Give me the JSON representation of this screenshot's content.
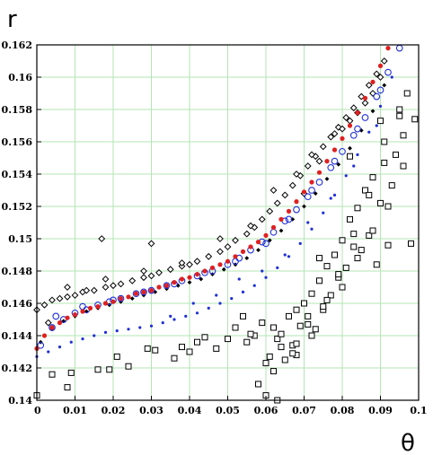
{
  "chart_data": {
    "type": "scatter",
    "title": "",
    "xlabel": "θ",
    "ylabel": "r",
    "xlim": [
      0,
      0.1
    ],
    "ylim": [
      0.14,
      0.162
    ],
    "x_ticks": [
      "0",
      "0.01",
      "0.02",
      "0.03",
      "0.04",
      "0.05",
      "0.06",
      "0.07",
      "0.08",
      "0.09",
      "0.1"
    ],
    "y_ticks": [
      "0.14",
      "0.142",
      "0.144",
      "0.146",
      "0.148",
      "0.15",
      "0.152",
      "0.154",
      "0.156",
      "0.158",
      "0.16",
      "0.162"
    ],
    "grid": true,
    "legend": "none",
    "series": [
      {
        "marker": "open-diamond",
        "color": "#000000",
        "x": [
          0.0,
          0.002,
          0.004,
          0.006,
          0.008,
          0.01,
          0.012,
          0.015,
          0.018,
          0.02,
          0.022,
          0.025,
          0.028,
          0.03,
          0.032,
          0.035,
          0.038,
          0.04,
          0.042,
          0.045,
          0.048,
          0.05,
          0.052,
          0.055,
          0.057,
          0.059,
          0.061,
          0.063,
          0.065,
          0.067,
          0.069,
          0.071,
          0.073,
          0.075,
          0.077,
          0.079,
          0.081,
          0.083,
          0.085,
          0.087,
          0.089,
          0.091,
          0.003,
          0.008,
          0.013,
          0.018,
          0.028,
          0.038,
          0.048,
          0.056,
          0.062,
          0.068,
          0.072,
          0.078,
          0.082,
          0.086,
          0.09,
          0.07,
          0.074,
          0.08,
          0.084,
          0.088,
          0.03,
          0.017
        ],
        "y": [
          0.1456,
          0.1459,
          0.1462,
          0.1463,
          0.1464,
          0.1465,
          0.1467,
          0.1468,
          0.147,
          0.1471,
          0.1472,
          0.1474,
          0.1476,
          0.1477,
          0.1479,
          0.1481,
          0.1483,
          0.1484,
          0.1486,
          0.1489,
          0.1492,
          0.1495,
          0.1499,
          0.1503,
          0.1507,
          0.1512,
          0.1517,
          0.1522,
          0.1527,
          0.1533,
          0.1539,
          0.1545,
          0.1551,
          0.1557,
          0.1563,
          0.1569,
          0.1575,
          0.1581,
          0.1588,
          0.1595,
          0.1602,
          0.161,
          0.1448,
          0.147,
          0.1468,
          0.1475,
          0.148,
          0.1485,
          0.15,
          0.1508,
          0.153,
          0.154,
          0.1552,
          0.1565,
          0.1573,
          0.1584,
          0.16,
          0.1528,
          0.1548,
          0.1568,
          0.1578,
          0.159,
          0.1497,
          0.15
        ]
      },
      {
        "marker": "small-filled-diamond",
        "color": "#000000",
        "x": [
          0.001,
          0.004,
          0.007,
          0.01,
          0.013,
          0.016,
          0.019,
          0.022,
          0.025,
          0.028,
          0.031,
          0.034,
          0.037,
          0.04,
          0.043,
          0.046,
          0.049,
          0.052,
          0.055,
          0.058,
          0.061,
          0.064,
          0.067,
          0.07,
          0.073,
          0.076,
          0.079,
          0.082,
          0.085,
          0.088,
          0.091
        ],
        "y": [
          0.1436,
          0.1444,
          0.1449,
          0.1452,
          0.1455,
          0.1457,
          0.1459,
          0.1461,
          0.1463,
          0.1465,
          0.1467,
          0.1469,
          0.1471,
          0.1473,
          0.1475,
          0.1478,
          0.1481,
          0.1484,
          0.1488,
          0.1493,
          0.1499,
          0.1505,
          0.1512,
          0.152,
          0.1528,
          0.1537,
          0.1546,
          0.1556,
          0.1567,
          0.1579,
          0.1595
        ]
      },
      {
        "marker": "open-circle",
        "color": "#1f2fd6",
        "x": [
          0.001,
          0.004,
          0.007,
          0.01,
          0.013,
          0.016,
          0.019,
          0.022,
          0.026,
          0.03,
          0.034,
          0.038,
          0.042,
          0.046,
          0.05,
          0.053,
          0.056,
          0.059,
          0.062,
          0.065,
          0.068,
          0.071,
          0.074,
          0.077,
          0.08,
          0.083,
          0.086,
          0.089,
          0.092,
          0.095,
          0.005,
          0.012,
          0.02,
          0.028,
          0.036,
          0.044,
          0.052,
          0.06,
          0.066,
          0.072,
          0.078,
          0.084,
          0.09
        ],
        "y": [
          0.1434,
          0.1445,
          0.145,
          0.1454,
          0.1456,
          0.1459,
          0.1461,
          0.1463,
          0.1466,
          0.1468,
          0.1471,
          0.1474,
          0.1477,
          0.148,
          0.1484,
          0.1488,
          0.1493,
          0.1498,
          0.1504,
          0.1511,
          0.1518,
          0.1526,
          0.1535,
          0.1544,
          0.1554,
          0.1564,
          0.1575,
          0.1588,
          0.1603,
          0.1618,
          0.1452,
          0.1458,
          0.1462,
          0.1467,
          0.1472,
          0.1479,
          0.1486,
          0.1497,
          0.1512,
          0.153,
          0.1548,
          0.1568,
          0.1592
        ]
      },
      {
        "marker": "small-filled-circle",
        "color": "#1f2fd6",
        "x": [
          0.0,
          0.003,
          0.006,
          0.009,
          0.012,
          0.015,
          0.018,
          0.021,
          0.024,
          0.027,
          0.03,
          0.033,
          0.036,
          0.039,
          0.042,
          0.045,
          0.048,
          0.051,
          0.054,
          0.057,
          0.06,
          0.063,
          0.066,
          0.069,
          0.072,
          0.075,
          0.078,
          0.081,
          0.084,
          0.087,
          0.09,
          0.093,
          0.035,
          0.041,
          0.047,
          0.053,
          0.059,
          0.065,
          0.071,
          0.077,
          0.083,
          0.089
        ],
        "y": [
          0.1427,
          0.143,
          0.1433,
          0.1436,
          0.1438,
          0.144,
          0.1442,
          0.1443,
          0.1444,
          0.1445,
          0.1446,
          0.1448,
          0.145,
          0.1452,
          0.1454,
          0.1457,
          0.146,
          0.1463,
          0.1467,
          0.1471,
          0.1476,
          0.1482,
          0.1489,
          0.1497,
          0.1506,
          0.1516,
          0.1527,
          0.1539,
          0.1552,
          0.1566,
          0.1582,
          0.16,
          0.1452,
          0.146,
          0.1465,
          0.1475,
          0.148,
          0.149,
          0.151,
          0.1525,
          0.1545,
          0.157
        ]
      },
      {
        "marker": "small-filled-circle",
        "color": "#e02020",
        "x": [
          0.0,
          0.002,
          0.004,
          0.006,
          0.008,
          0.01,
          0.012,
          0.014,
          0.016,
          0.018,
          0.02,
          0.022,
          0.024,
          0.026,
          0.028,
          0.03,
          0.032,
          0.034,
          0.036,
          0.038,
          0.04,
          0.042,
          0.044,
          0.046,
          0.048,
          0.05,
          0.052,
          0.054,
          0.056,
          0.058,
          0.06,
          0.062,
          0.064,
          0.066,
          0.068,
          0.07,
          0.072,
          0.074,
          0.076,
          0.078,
          0.08,
          0.082,
          0.084,
          0.086,
          0.088,
          0.09,
          0.092
        ],
        "y": [
          0.1432,
          0.144,
          0.1445,
          0.1448,
          0.1451,
          0.1453,
          0.1455,
          0.1457,
          0.1458,
          0.146,
          0.1461,
          0.1463,
          0.1464,
          0.1466,
          0.1467,
          0.1468,
          0.147,
          0.1471,
          0.1473,
          0.1475,
          0.1476,
          0.1478,
          0.148,
          0.1482,
          0.1484,
          0.1486,
          0.1489,
          0.1492,
          0.1495,
          0.1498,
          0.1502,
          0.1507,
          0.1512,
          0.1517,
          0.1523,
          0.1529,
          0.1535,
          0.1541,
          0.1548,
          0.1555,
          0.1562,
          0.157,
          0.1578,
          0.1587,
          0.1597,
          0.1607,
          0.1618
        ]
      },
      {
        "marker": "open-square",
        "color": "#000000",
        "x": [
          0.0,
          0.004,
          0.008,
          0.009,
          0.016,
          0.019,
          0.021,
          0.024,
          0.029,
          0.031,
          0.036,
          0.038,
          0.04,
          0.042,
          0.044,
          0.047,
          0.05,
          0.052,
          0.054,
          0.055,
          0.057,
          0.059,
          0.06,
          0.061,
          0.062,
          0.063,
          0.064,
          0.066,
          0.067,
          0.068,
          0.069,
          0.07,
          0.071,
          0.072,
          0.073,
          0.074,
          0.075,
          0.076,
          0.077,
          0.078,
          0.079,
          0.08,
          0.081,
          0.082,
          0.083,
          0.084,
          0.085,
          0.086,
          0.087,
          0.088,
          0.089,
          0.09,
          0.091,
          0.092,
          0.093,
          0.094,
          0.095,
          0.096,
          0.097,
          0.098,
          0.099,
          0.058,
          0.062,
          0.065,
          0.068,
          0.072,
          0.076,
          0.08,
          0.084,
          0.088,
          0.092,
          0.096,
          0.063,
          0.067,
          0.071,
          0.075,
          0.079,
          0.083,
          0.087,
          0.091,
          0.095,
          0.056,
          0.06,
          0.064,
          0.068,
          0.074,
          0.082,
          0.09
        ],
        "y": [
          0.1403,
          0.1416,
          0.1408,
          0.1417,
          0.1419,
          0.1419,
          0.1427,
          0.1421,
          0.1432,
          0.1431,
          0.1426,
          0.1433,
          0.143,
          0.1436,
          0.1439,
          0.1432,
          0.1438,
          0.1445,
          0.1452,
          0.1436,
          0.144,
          0.1448,
          0.1403,
          0.1427,
          0.1445,
          0.1438,
          0.1433,
          0.1452,
          0.1434,
          0.1428,
          0.1446,
          0.146,
          0.1447,
          0.1466,
          0.1444,
          0.1474,
          0.1456,
          0.1483,
          0.1465,
          0.149,
          0.1476,
          0.1499,
          0.1482,
          0.1512,
          0.1495,
          0.1519,
          0.1493,
          0.153,
          0.1502,
          0.1538,
          0.1484,
          0.1522,
          0.1547,
          0.1496,
          0.1533,
          0.1552,
          0.1576,
          0.1564,
          0.159,
          0.1497,
          0.1574,
          0.141,
          0.1418,
          0.1425,
          0.1435,
          0.144,
          0.1462,
          0.147,
          0.1488,
          0.1505,
          0.152,
          0.1545,
          0.14,
          0.1429,
          0.1452,
          0.1458,
          0.1478,
          0.1503,
          0.1527,
          0.156,
          0.158,
          0.1441,
          0.1423,
          0.1441,
          0.1456,
          0.1488,
          0.1551,
          0.1573
        ]
      }
    ]
  }
}
